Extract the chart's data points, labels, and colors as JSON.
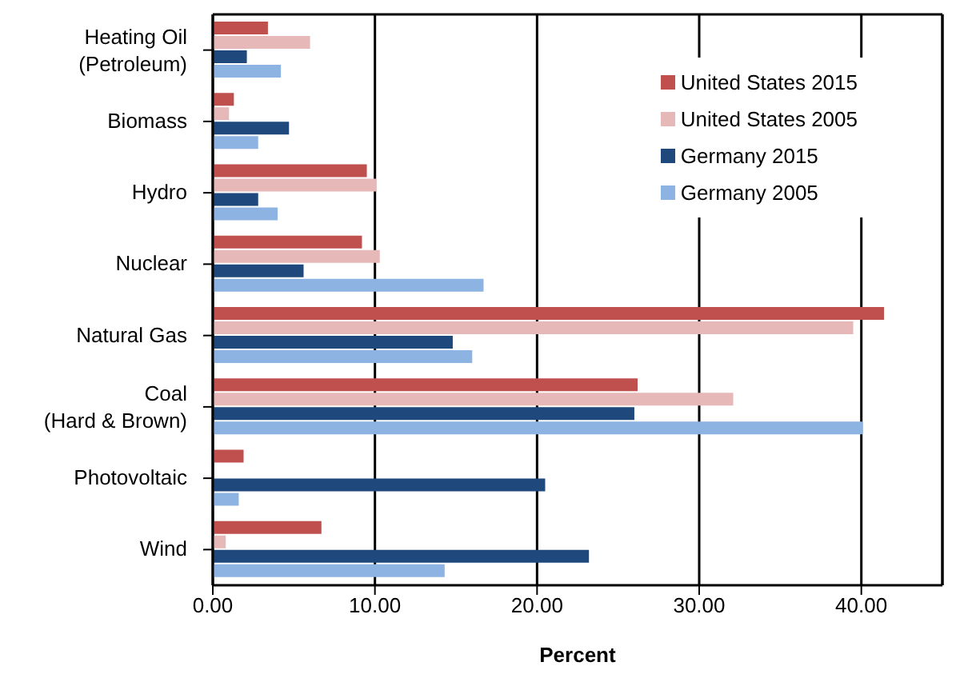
{
  "chart_data": {
    "type": "bar",
    "orientation": "horizontal",
    "xlabel": "Percent",
    "categories": [
      "Heating Oil (Petroleum)",
      "Biomass",
      "Hydro",
      "Nuclear",
      "Natural Gas",
      "Coal (Hard & Brown)",
      "Photovoltaic",
      "Wind"
    ],
    "series": [
      {
        "name": "United States 2015",
        "color": "#c0504d",
        "values": [
          3.4,
          1.3,
          9.5,
          9.2,
          41.4,
          26.2,
          1.9,
          6.7
        ]
      },
      {
        "name": "United States 2005",
        "color": "#e6b9b8",
        "values": [
          6.0,
          1.0,
          10.1,
          10.3,
          39.5,
          32.1,
          0,
          0.8
        ]
      },
      {
        "name": "Germany 2015",
        "color": "#1f497d",
        "values": [
          2.1,
          4.7,
          2.8,
          5.6,
          14.8,
          26.0,
          20.5,
          23.2
        ]
      },
      {
        "name": "Germany 2005",
        "color": "#8db3e2",
        "values": [
          4.2,
          2.8,
          4.0,
          16.7,
          16.0,
          40.1,
          1.6,
          14.3
        ]
      }
    ],
    "xlim": [
      0,
      45
    ],
    "xticks": [
      {
        "value": 0,
        "label": "0.00"
      },
      {
        "value": 10,
        "label": "10.00"
      },
      {
        "value": 20,
        "label": "20.00"
      },
      {
        "value": 30,
        "label": "30.00"
      },
      {
        "value": 40,
        "label": "40.00"
      }
    ],
    "grid": "x",
    "legend": "top right"
  }
}
